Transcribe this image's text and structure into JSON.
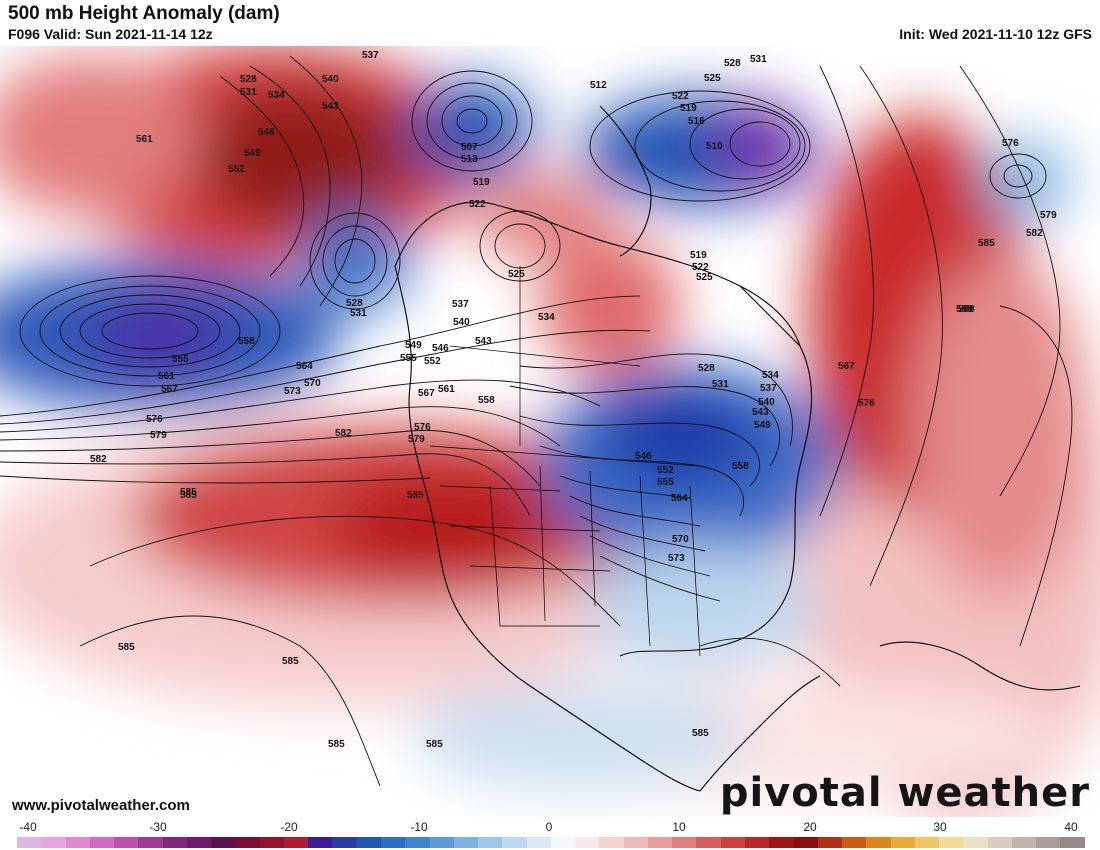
{
  "header": {
    "title": "500 mb Height Anomaly (dam)",
    "valid": "F096 Valid: Sun 2021-11-14 12z",
    "init": "Init: Wed 2021-11-10 12z GFS"
  },
  "footer": {
    "website": "www.pivotalweather.com",
    "brand": "pivotal weather"
  },
  "colorbar": {
    "ticks": [
      "-40",
      "-30",
      "-20",
      "-10",
      "0",
      "10",
      "20",
      "30",
      "40"
    ],
    "colors": [
      "#d9b8e8",
      "#e3a6e0",
      "#e088d2",
      "#d469c3",
      "#c24fae",
      "#a33997",
      "#85267f",
      "#6d1a6b",
      "#5b1250",
      "#7a0f33",
      "#95122f",
      "#b01c2f",
      "#3c1a9a",
      "#2b3ca8",
      "#1f56b8",
      "#2a6dc6",
      "#3e85d0",
      "#5b9cd8",
      "#7db3e1",
      "#9dc6ea",
      "#bdd8f1",
      "#dbe9f7",
      "#f3f6fa",
      "#fbe9e9",
      "#f6d2d2",
      "#f0b9b9",
      "#e99c9c",
      "#e27d7d",
      "#d85d5d",
      "#cb3f3f",
      "#ba2626",
      "#a11414",
      "#8a0c0c",
      "#b03010",
      "#cc5a10",
      "#e0851a",
      "#eaaa34",
      "#efc660",
      "#f1db96",
      "#ece0c2",
      "#d7cdc0",
      "#c0b4ac",
      "#a89d98",
      "#948b89"
    ]
  },
  "map": {
    "height_labels": [
      "537",
      "540",
      "543",
      "546",
      "549",
      "552",
      "528",
      "531",
      "534",
      "561",
      "507",
      "513",
      "519",
      "522",
      "512",
      "522",
      "519",
      "516",
      "510",
      "528",
      "531",
      "525",
      "576",
      "579",
      "582",
      "585",
      "588",
      "528",
      "531",
      "525",
      "519",
      "522",
      "525",
      "537",
      "540",
      "543",
      "534",
      "546",
      "549",
      "555",
      "552",
      "558",
      "561",
      "564",
      "567",
      "570",
      "573",
      "576",
      "579",
      "582",
      "585",
      "585",
      "588",
      "555",
      "558",
      "561",
      "564",
      "567",
      "570",
      "573",
      "576",
      "579",
      "582",
      "585",
      "528",
      "531",
      "534",
      "537",
      "540",
      "543",
      "546",
      "549",
      "552",
      "555",
      "558",
      "585",
      "585",
      "585",
      "585",
      "585",
      "567",
      "576"
    ]
  }
}
